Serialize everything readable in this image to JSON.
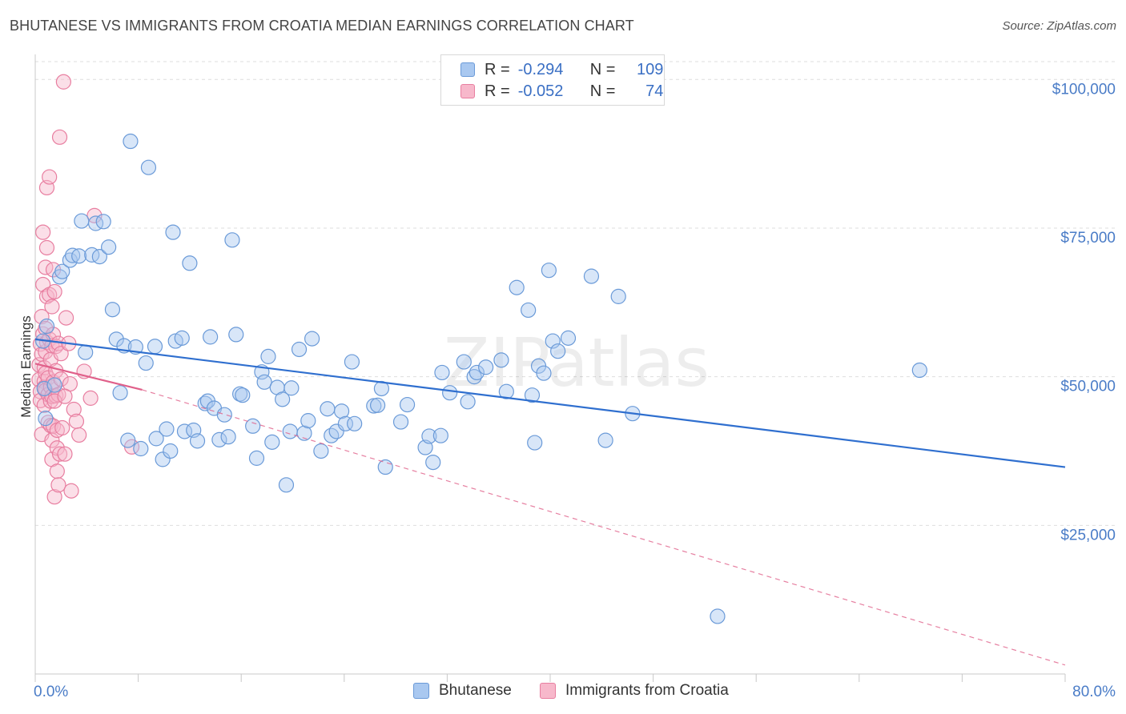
{
  "title": "BHUTANESE VS IMMIGRANTS FROM CROATIA MEDIAN EARNINGS CORRELATION CHART",
  "source": "Source: ZipAtlas.com",
  "watermark": "ZIPatlas",
  "legend_top": [
    {
      "r_label": "R =",
      "r_value": "-0.294",
      "n_label": "N =",
      "n_value": "109"
    },
    {
      "r_label": "R =",
      "r_value": "-0.052",
      "n_label": "N =",
      "n_value": "74"
    }
  ],
  "bottom_legend": [
    "Bhutanese",
    "Immigrants from Croatia"
  ],
  "colors": {
    "blue_fill": "#a9c8f0",
    "blue_stroke": "#6a9ad8",
    "blue_line": "#2f6fcf",
    "pink_fill": "#f7b8cb",
    "pink_stroke": "#e87ea0",
    "pink_line": "#e0608a",
    "axis_text": "#4a7cc7",
    "grid": "#dedede"
  },
  "chart_data": {
    "type": "scatter",
    "title": "BHUTANESE VS IMMIGRANTS FROM CROATIA MEDIAN EARNINGS CORRELATION CHART",
    "xlabel": "",
    "ylabel": "Median Earnings",
    "xlim": [
      0,
      80
    ],
    "ylim": [
      0,
      103000
    ],
    "x_tick_labels": [
      "0.0%",
      "80.0%"
    ],
    "y_ticks": [
      25000,
      50000,
      75000,
      100000
    ],
    "y_tick_labels": [
      "$25,000",
      "$50,000",
      "$75,000",
      "$100,000"
    ],
    "grid": true,
    "legend_position": "top-center",
    "series": [
      {
        "name": "Bhutanese",
        "R": -0.294,
        "N": 109,
        "trend": {
          "x": [
            0,
            80
          ],
          "y": [
            56300,
            34800
          ],
          "style": "solid"
        },
        "points": [
          [
            0.6,
            56000
          ],
          [
            0.7,
            48000
          ],
          [
            0.8,
            43000
          ],
          [
            0.9,
            58500
          ],
          [
            1.5,
            48600
          ],
          [
            1.9,
            66800
          ],
          [
            2.1,
            67700
          ],
          [
            2.7,
            69600
          ],
          [
            2.9,
            70400
          ],
          [
            3.4,
            70300
          ],
          [
            3.6,
            76200
          ],
          [
            3.9,
            54100
          ],
          [
            4.4,
            70500
          ],
          [
            4.7,
            75800
          ],
          [
            5.0,
            70200
          ],
          [
            5.3,
            76100
          ],
          [
            5.7,
            71800
          ],
          [
            6.0,
            61300
          ],
          [
            6.3,
            56300
          ],
          [
            6.6,
            47300
          ],
          [
            6.9,
            55200
          ],
          [
            7.2,
            39300
          ],
          [
            7.4,
            89600
          ],
          [
            7.8,
            55000
          ],
          [
            8.2,
            37900
          ],
          [
            8.6,
            52300
          ],
          [
            8.8,
            85200
          ],
          [
            9.3,
            55100
          ],
          [
            9.4,
            39600
          ],
          [
            9.9,
            36100
          ],
          [
            10.2,
            41200
          ],
          [
            10.5,
            37500
          ],
          [
            10.7,
            74300
          ],
          [
            10.9,
            56000
          ],
          [
            11.4,
            56500
          ],
          [
            11.6,
            40800
          ],
          [
            12.0,
            69100
          ],
          [
            12.3,
            41000
          ],
          [
            12.6,
            39200
          ],
          [
            13.2,
            45500
          ],
          [
            13.4,
            45900
          ],
          [
            13.6,
            56700
          ],
          [
            13.9,
            44700
          ],
          [
            14.3,
            39400
          ],
          [
            14.7,
            43600
          ],
          [
            15.0,
            39900
          ],
          [
            15.3,
            73000
          ],
          [
            15.6,
            57100
          ],
          [
            15.9,
            47100
          ],
          [
            16.1,
            46900
          ],
          [
            16.9,
            41700
          ],
          [
            17.2,
            36300
          ],
          [
            17.6,
            50800
          ],
          [
            17.8,
            49100
          ],
          [
            18.1,
            53400
          ],
          [
            18.4,
            39000
          ],
          [
            18.8,
            48200
          ],
          [
            19.2,
            46200
          ],
          [
            19.5,
            31800
          ],
          [
            19.9,
            48100
          ],
          [
            19.8,
            40800
          ],
          [
            20.5,
            54600
          ],
          [
            20.9,
            40500
          ],
          [
            21.2,
            42600
          ],
          [
            21.5,
            56400
          ],
          [
            22.2,
            37500
          ],
          [
            22.7,
            44600
          ],
          [
            23.0,
            40100
          ],
          [
            23.4,
            40800
          ],
          [
            23.8,
            44200
          ],
          [
            24.1,
            42100
          ],
          [
            24.6,
            52500
          ],
          [
            24.8,
            42100
          ],
          [
            26.3,
            45100
          ],
          [
            26.6,
            45200
          ],
          [
            26.9,
            48000
          ],
          [
            27.2,
            34800
          ],
          [
            28.4,
            42400
          ],
          [
            28.9,
            45300
          ],
          [
            30.3,
            38100
          ],
          [
            30.6,
            40000
          ],
          [
            30.9,
            35600
          ],
          [
            31.5,
            40100
          ],
          [
            31.6,
            50700
          ],
          [
            32.2,
            47300
          ],
          [
            33.3,
            52500
          ],
          [
            33.6,
            45800
          ],
          [
            34.1,
            50000
          ],
          [
            34.3,
            50700
          ],
          [
            35.0,
            51600
          ],
          [
            36.2,
            52800
          ],
          [
            36.6,
            47500
          ],
          [
            37.4,
            65000
          ],
          [
            38.3,
            61200
          ],
          [
            38.6,
            46900
          ],
          [
            38.8,
            38900
          ],
          [
            39.1,
            51800
          ],
          [
            39.5,
            50600
          ],
          [
            39.9,
            67900
          ],
          [
            40.2,
            56000
          ],
          [
            40.6,
            54300
          ],
          [
            41.4,
            56500
          ],
          [
            43.2,
            66900
          ],
          [
            44.3,
            39300
          ],
          [
            45.3,
            63500
          ],
          [
            46.4,
            43800
          ],
          [
            53.0,
            9700
          ],
          [
            68.7,
            51100
          ]
        ]
      },
      {
        "name": "Immigrants from Croatia",
        "R": -0.052,
        "N": 74,
        "trend_solid": {
          "x": [
            0,
            8.3
          ],
          "y": [
            52200,
            47800
          ],
          "style": "solid"
        },
        "trend_dashed": {
          "x": [
            8.3,
            80
          ],
          "y": [
            47800,
            1500
          ],
          "style": "dashed"
        },
        "points": [
          [
            0.3,
            52000
          ],
          [
            0.3,
            49500
          ],
          [
            0.4,
            47500
          ],
          [
            0.4,
            46000
          ],
          [
            0.4,
            55500
          ],
          [
            0.5,
            60100
          ],
          [
            0.5,
            53800
          ],
          [
            0.5,
            40300
          ],
          [
            0.6,
            74300
          ],
          [
            0.6,
            65500
          ],
          [
            0.6,
            57200
          ],
          [
            0.7,
            51500
          ],
          [
            0.7,
            49200
          ],
          [
            0.7,
            48200
          ],
          [
            0.7,
            45200
          ],
          [
            0.8,
            68400
          ],
          [
            0.8,
            58100
          ],
          [
            0.8,
            54200
          ],
          [
            0.8,
            50600
          ],
          [
            0.8,
            47700
          ],
          [
            0.9,
            81800
          ],
          [
            0.9,
            71700
          ],
          [
            0.9,
            63500
          ],
          [
            0.9,
            55800
          ],
          [
            1.0,
            49800
          ],
          [
            1.0,
            47000
          ],
          [
            1.0,
            42300
          ],
          [
            1.1,
            83600
          ],
          [
            1.1,
            63800
          ],
          [
            1.1,
            56300
          ],
          [
            1.2,
            52900
          ],
          [
            1.2,
            48300
          ],
          [
            1.2,
            45900
          ],
          [
            1.2,
            41800
          ],
          [
            1.3,
            61800
          ],
          [
            1.3,
            55200
          ],
          [
            1.3,
            46700
          ],
          [
            1.3,
            39300
          ],
          [
            1.3,
            36100
          ],
          [
            1.4,
            68000
          ],
          [
            1.4,
            57100
          ],
          [
            1.4,
            49100
          ],
          [
            1.4,
            41700
          ],
          [
            1.5,
            29800
          ],
          [
            1.5,
            64300
          ],
          [
            1.6,
            55100
          ],
          [
            1.6,
            51000
          ],
          [
            1.6,
            46800
          ],
          [
            1.7,
            41000
          ],
          [
            1.7,
            38000
          ],
          [
            1.7,
            34100
          ],
          [
            1.8,
            31800
          ],
          [
            1.8,
            55600
          ],
          [
            1.8,
            47000
          ],
          [
            1.9,
            37000
          ],
          [
            1.9,
            90300
          ],
          [
            2.0,
            53900
          ],
          [
            2.0,
            49600
          ],
          [
            2.1,
            41400
          ],
          [
            2.2,
            99600
          ],
          [
            2.3,
            37000
          ],
          [
            2.4,
            59900
          ],
          [
            2.6,
            55600
          ],
          [
            2.7,
            48800
          ],
          [
            2.8,
            30800
          ],
          [
            3.0,
            44500
          ],
          [
            3.2,
            42500
          ],
          [
            3.4,
            40200
          ],
          [
            3.8,
            50900
          ],
          [
            4.3,
            46400
          ],
          [
            4.6,
            77100
          ],
          [
            7.5,
            38200
          ],
          [
            1.5,
            45900
          ],
          [
            2.3,
            46700
          ]
        ]
      }
    ]
  }
}
